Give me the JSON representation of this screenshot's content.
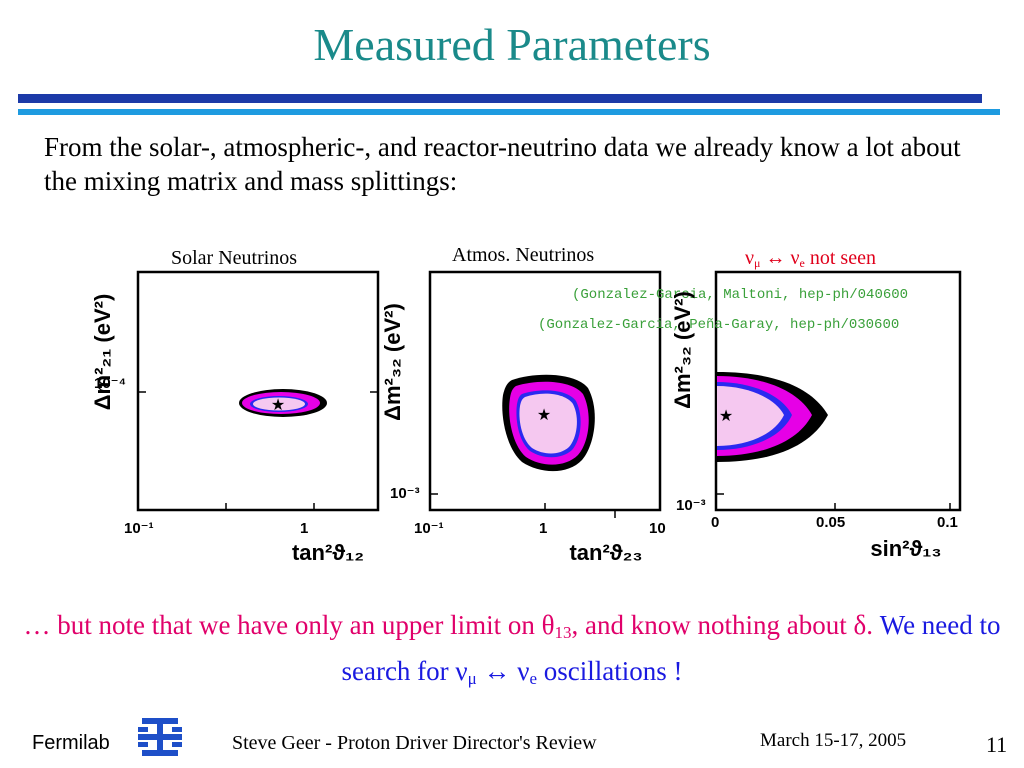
{
  "slide": {
    "title": "Measured Parameters",
    "intro": "From the solar-, atmospheric-, and reactor-neutrino data we already know a lot about the mixing matrix and mass splittings:"
  },
  "panels": [
    {
      "label": "Solar Neutrinos",
      "ylabel": "Δm²₂₁ (eV²)",
      "xlabel": "tan²ϑ₁₂",
      "xticks": [
        "10⁻¹",
        "1"
      ],
      "yticks": [
        "10⁻⁴"
      ]
    },
    {
      "label": "Atmos. Neutrinos",
      "ylabel": "Δm²₃₂ (eV²)",
      "xlabel": "tan²ϑ₂₃",
      "xticks": [
        "10⁻¹",
        "1",
        "10"
      ],
      "yticks": [
        "10⁻³"
      ]
    },
    {
      "label_parts": {
        "nu1": "ν",
        "mu": "μ",
        "arrow": "↔",
        "nu2": "ν",
        "e": "e",
        "rest": " not seen"
      },
      "ylabel": "Δm²₃₂ (eV²)",
      "xlabel": "sin²ϑ₁₃",
      "xticks": [
        "0",
        "0.05",
        "0.1"
      ],
      "yticks": [
        "10⁻³"
      ],
      "citations": [
        "(Gonzalez-Garcia, Maltoni, hep-ph/040600",
        "(Gonzalez-Garcia, Peña-Garay, hep-ph/030600"
      ]
    }
  ],
  "note": {
    "part1": "…  but note that we have only an upper limit on θ",
    "theta_sub": "13",
    "part2": ", and know nothing about δ.   ",
    "part3": "We need to search for ν",
    "mu": "μ",
    "arrow": " ↔ ν",
    "e": "e",
    "part4": " oscillations !"
  },
  "footer": {
    "lab": "Fermilab",
    "presenter": "Steve Geer  - Proton Driver Director's Review",
    "date": "March 15-17, 2005",
    "page": "11"
  },
  "colors": {
    "title": "#1a8a8a",
    "rule_dark": "#1c3aa8",
    "rule_light": "#1e9be0",
    "magenta": "#e600e6",
    "pink_fill": "#f5c8f0",
    "blue_contour": "#2a2af0",
    "citation_green": "#3aa03a"
  }
}
